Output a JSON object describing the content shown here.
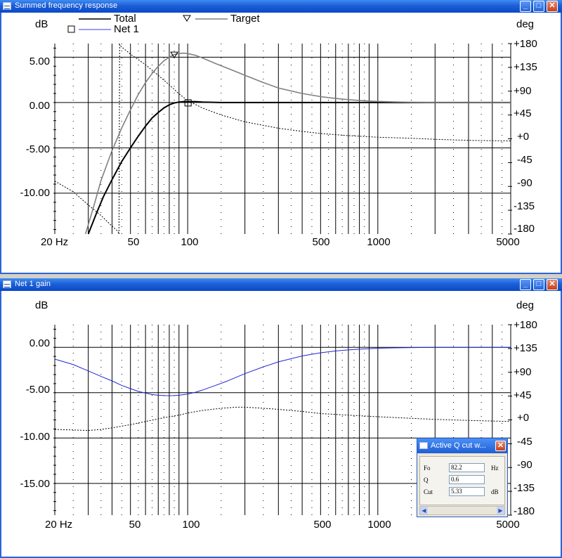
{
  "window1": {
    "title": "Summed frequency response",
    "left_unit": "dB",
    "right_unit": "deg",
    "legend": {
      "total": "Total",
      "target": "Target",
      "net1": "Net 1"
    },
    "y_ticks": [
      "5.00",
      "0.00",
      "-5.00",
      "-10.00"
    ],
    "phase_ticks": [
      "+180",
      "+135",
      "+90",
      "+45",
      "+0",
      "-45",
      "-90",
      "-135",
      "-180"
    ],
    "x_ticks": [
      "20 Hz",
      "50",
      "100",
      "500",
      "1000",
      "5000"
    ]
  },
  "window2": {
    "title": "Net 1 gain",
    "left_unit": "dB",
    "right_unit": "deg",
    "y_ticks": [
      "0.00",
      "-5.00",
      "-10.00",
      "-15.00"
    ],
    "phase_ticks": [
      "+180",
      "+135",
      "+90",
      "+45",
      "+0",
      "-45",
      "-90",
      "-135",
      "-180"
    ],
    "x_ticks": [
      "20 Hz",
      "50",
      "100",
      "500",
      "1000",
      "5000"
    ]
  },
  "dialog": {
    "title": "Active Q cut w...",
    "fields": [
      {
        "label": "Fo",
        "value": "82.2",
        "unit": "Hz"
      },
      {
        "label": "Q",
        "value": "0.6",
        "unit": ""
      },
      {
        "label": "Cut",
        "value": "5.33",
        "unit": "dB"
      }
    ]
  },
  "colors": {
    "title_bar": "#1c5fd6",
    "total": "#000000",
    "target": "#808080",
    "net1": "#1f25d6",
    "phase": "#000000"
  },
  "chart_data": [
    {
      "type": "line",
      "title": "Summed frequency response",
      "x_scale": "log",
      "xlim": [
        20,
        5000
      ],
      "ylim": [
        -14.5,
        6.5
      ],
      "y2lim": [
        -180,
        180
      ],
      "series": [
        {
          "name": "Total",
          "x": [
            30,
            33,
            36,
            40,
            45,
            50,
            55,
            60,
            65,
            70,
            75,
            80,
            85,
            90,
            95,
            100,
            110,
            120,
            150,
            230,
            5000
          ],
          "y": [
            -14.5,
            -12.3,
            -10.4,
            -8.5,
            -6.5,
            -5.0,
            -3.7,
            -2.6,
            -1.7,
            -1.1,
            -0.6,
            -0.25,
            -0.05,
            0.05,
            0.1,
            0.1,
            0.1,
            0.05,
            0.0,
            0.0,
            0.0
          ]
        },
        {
          "name": "Target",
          "x": [
            29,
            32,
            35,
            40,
            45,
            50,
            55,
            60,
            65,
            70,
            75,
            80,
            85,
            90,
            95,
            100,
            110,
            120,
            140,
            170,
            200,
            250,
            300,
            400,
            500,
            600,
            700,
            800,
            1000,
            1200,
            1500,
            2000,
            5000
          ],
          "y": [
            -14.5,
            -11.5,
            -8.6,
            -5.3,
            -2.8,
            -0.8,
            0.9,
            2.2,
            3.2,
            4.0,
            4.6,
            5.0,
            5.3,
            5.4,
            5.45,
            5.4,
            5.2,
            4.9,
            4.3,
            3.6,
            3.0,
            2.2,
            1.6,
            1.0,
            0.65,
            0.45,
            0.32,
            0.22,
            0.12,
            0.07,
            0.03,
            0.0,
            0.0
          ]
        }
      ],
      "phase": {
        "x": [
          20,
          25,
          30,
          35,
          40,
          43,
          43.5,
          44.5,
          50,
          60,
          70,
          80,
          90,
          100,
          120,
          150,
          200,
          300,
          400,
          500,
          700,
          1000,
          1500,
          2000,
          3000,
          5000
        ],
        "deg": [
          -80,
          -100,
          -125,
          -145,
          -165,
          -175,
          180,
          175,
          160,
          140,
          120,
          102,
          85,
          72,
          58,
          45,
          32,
          20,
          14,
          10,
          6,
          3,
          1,
          -1,
          -3,
          -4
        ]
      },
      "markers": [
        {
          "series": "Target",
          "shape": "triangle",
          "x": 85,
          "y": 5.1
        },
        {
          "series": "Net 1",
          "shape": "square",
          "x": 100,
          "y": 0.0
        }
      ]
    },
    {
      "type": "line",
      "title": "Net 1 gain",
      "x_scale": "log",
      "xlim": [
        20,
        5000
      ],
      "ylim": [
        -18.5,
        2.5
      ],
      "y2lim": [
        -180,
        180
      ],
      "series": [
        {
          "name": "Net 1",
          "x": [
            20,
            25,
            30,
            35,
            40,
            45,
            50,
            55,
            60,
            65,
            70,
            75,
            80,
            85,
            90,
            100,
            110,
            120,
            140,
            160,
            180,
            200,
            250,
            300,
            400,
            500,
            600,
            700,
            800,
            1000,
            1200,
            1500,
            2000,
            5000
          ],
          "y": [
            -1.3,
            -1.9,
            -2.6,
            -3.2,
            -3.7,
            -4.2,
            -4.55,
            -4.85,
            -5.05,
            -5.2,
            -5.28,
            -5.32,
            -5.33,
            -5.32,
            -5.28,
            -5.15,
            -4.95,
            -4.7,
            -4.2,
            -3.75,
            -3.3,
            -2.9,
            -2.15,
            -1.6,
            -0.95,
            -0.6,
            -0.4,
            -0.28,
            -0.2,
            -0.1,
            -0.06,
            -0.03,
            0.0,
            0.0
          ]
        }
      ],
      "phase": {
        "x": [
          20,
          25,
          30,
          35,
          40,
          50,
          60,
          70,
          80,
          90,
          100,
          120,
          150,
          180,
          200,
          250,
          300,
          400,
          500,
          700,
          1000,
          1500,
          2000,
          3000,
          5000
        ],
        "deg": [
          -18,
          -19,
          -20,
          -18,
          -15,
          -9,
          -3,
          2,
          6,
          9,
          13,
          18,
          22,
          24,
          24,
          22,
          20,
          16,
          12,
          9,
          6,
          3,
          1,
          -1,
          -3
        ]
      }
    }
  ]
}
